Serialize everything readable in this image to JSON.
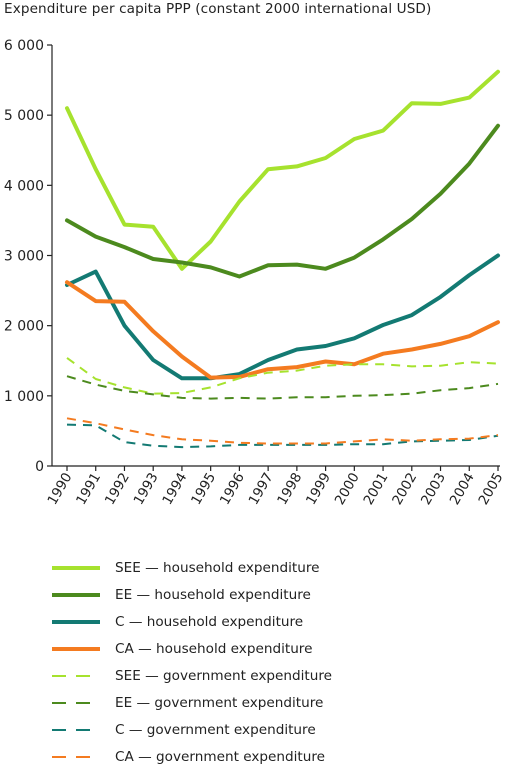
{
  "chart_data": {
    "type": "line",
    "title": "Expenditure per capita PPP (constant 2000 international USD)",
    "xlabel": "",
    "ylabel": "",
    "x": [
      "1990",
      "1991",
      "1992",
      "1993",
      "1994",
      "1995",
      "1996",
      "1997",
      "1998",
      "1999",
      "2000",
      "2001",
      "2002",
      "2003",
      "2004",
      "2005"
    ],
    "ylim": [
      0,
      6000
    ],
    "yticks": [
      0,
      1000,
      2000,
      3000,
      4000,
      5000,
      6000
    ],
    "ytick_labels": [
      "0",
      "1 000",
      "2 000",
      "3 000",
      "4 000",
      "5 000",
      "6 000"
    ],
    "grid": false,
    "legend_position": "bottom",
    "series": [
      {
        "name": "SEE — household expenditure",
        "color": "#a6e22e",
        "style": "solid",
        "values": [
          5100,
          4230,
          3440,
          3410,
          2810,
          3200,
          3770,
          4230,
          4270,
          4390,
          4660,
          4780,
          5170,
          5160,
          5250,
          5620
        ]
      },
      {
        "name": "EE — household expenditure",
        "color": "#4c8a1e",
        "style": "solid",
        "values": [
          3500,
          3270,
          3120,
          2950,
          2900,
          2830,
          2700,
          2860,
          2870,
          2810,
          2970,
          3230,
          3520,
          3880,
          4310,
          4850
        ]
      },
      {
        "name": "C — household expenditure",
        "color": "#137a73",
        "style": "solid",
        "values": [
          2580,
          2770,
          2000,
          1510,
          1250,
          1250,
          1310,
          1510,
          1660,
          1710,
          1820,
          2010,
          2150,
          2410,
          2720,
          3000
        ]
      },
      {
        "name": "CA — household expenditure",
        "color": "#f47b20",
        "style": "solid",
        "values": [
          2620,
          2350,
          2340,
          1920,
          1560,
          1260,
          1270,
          1380,
          1410,
          1490,
          1450,
          1600,
          1660,
          1740,
          1850,
          2050
        ]
      },
      {
        "name": "SEE — government expenditure",
        "color": "#a6e22e",
        "style": "dashed",
        "values": [
          1540,
          1240,
          1120,
          1030,
          1040,
          1120,
          1250,
          1330,
          1360,
          1430,
          1450,
          1450,
          1420,
          1430,
          1480,
          1460
        ]
      },
      {
        "name": "EE — government expenditure",
        "color": "#4c8a1e",
        "style": "dashed",
        "values": [
          1280,
          1160,
          1070,
          1020,
          970,
          960,
          970,
          960,
          980,
          980,
          1000,
          1010,
          1030,
          1080,
          1110,
          1170
        ]
      },
      {
        "name": "C — government expenditure",
        "color": "#137a73",
        "style": "dashed",
        "values": [
          590,
          580,
          340,
          290,
          270,
          280,
          300,
          300,
          300,
          300,
          310,
          310,
          350,
          360,
          370,
          430
        ]
      },
      {
        "name": "CA — government expenditure",
        "color": "#f47b20",
        "style": "dashed",
        "values": [
          680,
          610,
          520,
          440,
          380,
          360,
          330,
          320,
          320,
          320,
          350,
          380,
          360,
          380,
          390,
          440
        ]
      }
    ]
  }
}
